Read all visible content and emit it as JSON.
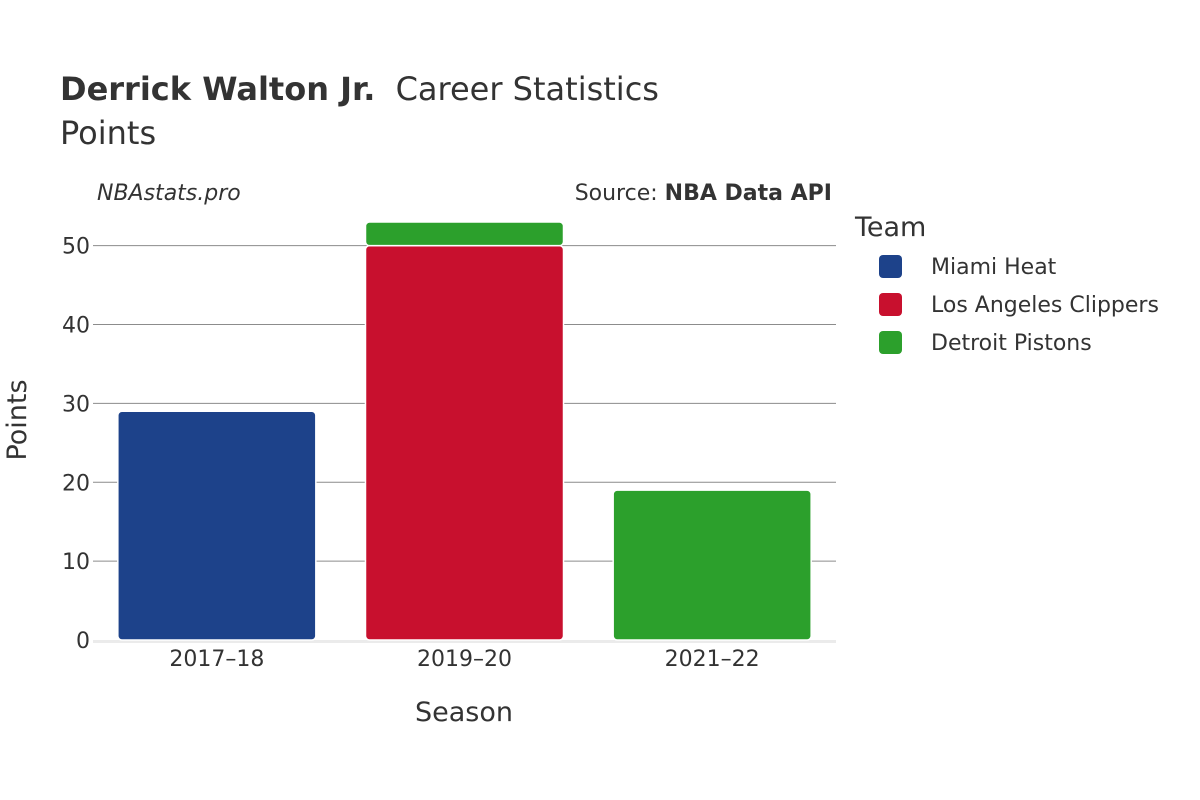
{
  "header": {
    "player_name": "Derrick Walton Jr.",
    "title_suffix": "Career Statistics",
    "subtitle": "Points"
  },
  "watermark": "NBAstats.pro",
  "source": {
    "prefix": "Source: ",
    "name": "NBA Data API"
  },
  "legend": {
    "title": "Team",
    "items": [
      {
        "label": "Miami Heat",
        "color": "#1d428a"
      },
      {
        "label": "Los Angeles Clippers",
        "color": "#c8102e"
      },
      {
        "label": "Detroit Pistons",
        "color": "#2ca02c"
      }
    ]
  },
  "chart_data": {
    "type": "bar",
    "stacked": true,
    "categories": [
      "2017–18",
      "2019–20",
      "2021–22"
    ],
    "series": [
      {
        "name": "Miami Heat",
        "color": "#1d428a",
        "values": [
          29,
          0,
          0
        ]
      },
      {
        "name": "Los Angeles Clippers",
        "color": "#c8102e",
        "values": [
          0,
          50,
          0
        ]
      },
      {
        "name": "Detroit Pistons",
        "color": "#2ca02c",
        "values": [
          0,
          3,
          19
        ]
      }
    ],
    "xlabel": "Season",
    "ylabel": "Points",
    "ylim": [
      0,
      55
    ],
    "yticks": [
      0,
      10,
      20,
      30,
      40,
      50
    ],
    "grid": true,
    "legend_position": "right"
  }
}
